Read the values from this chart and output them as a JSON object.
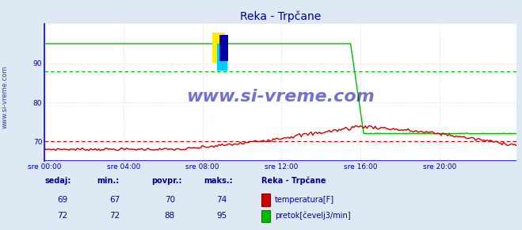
{
  "title": "Reka - Trpčane",
  "bg_color": "#dfe9f3",
  "plot_bg_color": "#ffffff",
  "grid_color": "#ffcccc",
  "ylim": [
    65,
    100
  ],
  "xlim": [
    0,
    287
  ],
  "yticks": [
    70,
    80,
    90
  ],
  "xtick_labels": [
    "sre 00:00",
    "sre 04:00",
    "sre 08:00",
    "sre 12:00",
    "sre 16:00",
    "sre 20:00"
  ],
  "xtick_positions": [
    0,
    48,
    96,
    144,
    192,
    240
  ],
  "title_color": "#000099",
  "tick_color": "#000099",
  "watermark": "www.si-vreme.com",
  "watermark_color": "#000099",
  "sidebar_label": "www.si-vreme.com",
  "temp_color": "#cc0000",
  "flow_color": "#00bb00",
  "temp_avg": 70,
  "flow_avg": 88,
  "temp_cur": 69,
  "temp_min": 67,
  "temp_avg_val": 70,
  "temp_max": 74,
  "flow_cur": 72,
  "flow_min": 72,
  "flow_avg_val": 88,
  "flow_max": 95,
  "legend_title": "Reka - Trpčane",
  "legend_label1": "temperatura[F]",
  "legend_label2": "pretok[čevelj3/min]",
  "table_headers": [
    "sedaj:",
    "min.:",
    "povpr.:",
    "maks.:"
  ],
  "table_color": "#000099"
}
